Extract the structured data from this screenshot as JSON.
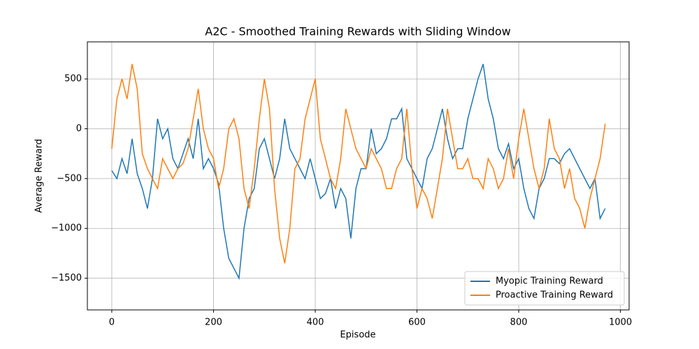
{
  "chart_data": {
    "type": "line",
    "title": "A2C - Smoothed Training Rewards with Sliding Window",
    "x_label": "Episode",
    "y_label": "Average Reward",
    "x": [
      0,
      10,
      20,
      30,
      40,
      50,
      60,
      70,
      80,
      90,
      100,
      110,
      120,
      130,
      140,
      150,
      160,
      170,
      180,
      190,
      200,
      210,
      220,
      230,
      240,
      250,
      260,
      270,
      280,
      290,
      300,
      310,
      320,
      330,
      340,
      350,
      360,
      370,
      380,
      390,
      400,
      410,
      420,
      430,
      440,
      450,
      460,
      470,
      480,
      490,
      500,
      510,
      520,
      530,
      540,
      550,
      560,
      570,
      580,
      590,
      600,
      610,
      620,
      630,
      640,
      650,
      660,
      670,
      680,
      690,
      700,
      710,
      720,
      730,
      740,
      750,
      760,
      770,
      780,
      790,
      800,
      810,
      820,
      830,
      840,
      850,
      860,
      870,
      880,
      890,
      900,
      910,
      920,
      930,
      940,
      950,
      960,
      970
    ],
    "series": [
      {
        "name": "Myopic Training Reward",
        "color": "#1f77b4",
        "values": [
          -420,
          -500,
          -300,
          -450,
          -100,
          -450,
          -600,
          -800,
          -500,
          100,
          -100,
          0,
          -300,
          -400,
          -250,
          -100,
          -300,
          100,
          -400,
          -300,
          -400,
          -550,
          -1000,
          -1300,
          -1400,
          -1500,
          -1000,
          -700,
          -600,
          -200,
          -100,
          -300,
          -500,
          -300,
          100,
          -200,
          -300,
          -400,
          -500,
          -300,
          -500,
          -700,
          -650,
          -500,
          -800,
          -600,
          -700,
          -1100,
          -600,
          -400,
          -400,
          0,
          -250,
          -200,
          -100,
          100,
          100,
          200,
          -300,
          -400,
          -500,
          -600,
          -300,
          -200,
          0,
          200,
          -100,
          -300,
          -200,
          -200,
          100,
          300,
          500,
          650,
          300,
          100,
          -200,
          -300,
          -150,
          -400,
          -300,
          -600,
          -800,
          -900,
          -600,
          -500,
          -300,
          -300,
          -350,
          -250,
          -200,
          -300,
          -400,
          -500,
          -600,
          -500,
          -900,
          -800
        ]
      },
      {
        "name": "Proactive Training Reward",
        "color": "#ff7f0e",
        "values": [
          -200,
          300,
          500,
          300,
          650,
          400,
          -250,
          -400,
          -500,
          -600,
          -300,
          -400,
          -500,
          -400,
          -350,
          -200,
          100,
          400,
          0,
          -200,
          -300,
          -600,
          -400,
          0,
          100,
          -100,
          -600,
          -800,
          -400,
          100,
          500,
          200,
          -600,
          -1100,
          -1350,
          -1000,
          -400,
          -300,
          100,
          300,
          500,
          -100,
          -300,
          -500,
          -600,
          -300,
          200,
          0,
          -200,
          -300,
          -400,
          -200,
          -300,
          -400,
          -600,
          -600,
          -400,
          -300,
          200,
          -400,
          -800,
          -600,
          -700,
          -900,
          -600,
          -300,
          200,
          -100,
          -400,
          -400,
          -300,
          -500,
          -500,
          -600,
          -300,
          -400,
          -600,
          -500,
          -200,
          -500,
          -100,
          200,
          -100,
          -400,
          -600,
          -400,
          100,
          -200,
          -300,
          -600,
          -400,
          -700,
          -800,
          -1000,
          -700,
          -500,
          -300,
          50
        ]
      }
    ],
    "xlim": [
      -48,
      1017
    ],
    "ylim": [
      -1818,
      872
    ],
    "xticks": [
      0,
      200,
      400,
      600,
      800,
      1000
    ],
    "yticks": [
      {
        "value": -1500,
        "label": "−1500"
      },
      {
        "value": -1000,
        "label": "−1000"
      },
      {
        "value": -500,
        "label": "−500"
      },
      0,
      500
    ],
    "grid": true,
    "legend": "lower right"
  }
}
